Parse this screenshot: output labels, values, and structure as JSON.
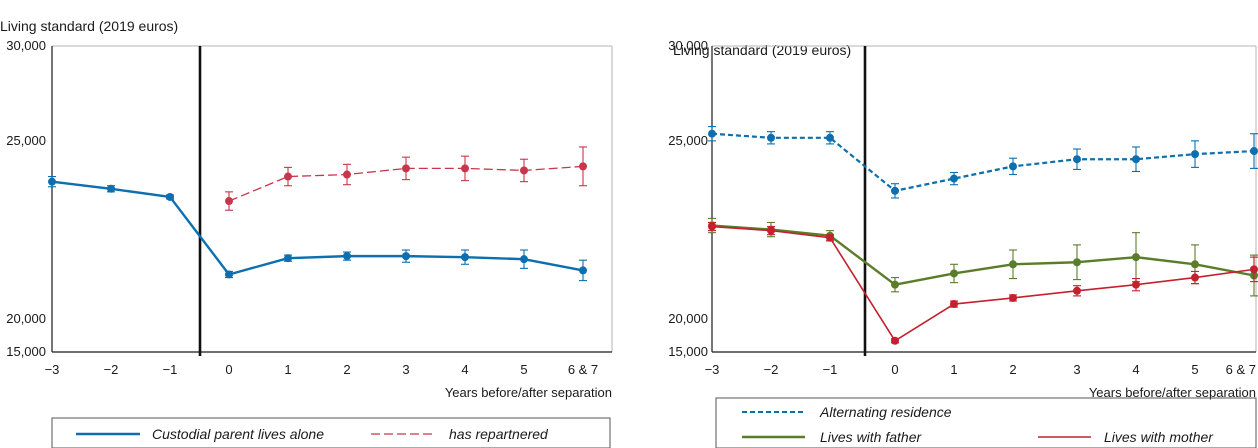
{
  "colors": {
    "blue": "#0b6fb0",
    "red": "#c8364b",
    "green": "#5a7d2a",
    "crimson": "#c4202e",
    "axis": "#1a1a1a",
    "frame": "#b4b4b4"
  },
  "chart_data": [
    {
      "type": "line",
      "ylabel": "Living standard (2019 euros)",
      "xlabel": "Years before/after separation",
      "x_ticks": [
        "−3",
        "−2",
        "−1",
        "0",
        "1",
        "2",
        "3",
        "4",
        "5",
        "6 & 7"
      ],
      "x_positions": [
        -3,
        -2,
        -1,
        0,
        1,
        2,
        3,
        4,
        5,
        6
      ],
      "y_ticks": [
        "15,000",
        "20,000",
        "25,000",
        "30,000"
      ],
      "ylim": [
        15000,
        30000
      ],
      "xlim": [
        -3,
        6
      ],
      "separation_line_x": -0.5,
      "series": [
        {
          "name": "Custodial parent lives alone",
          "style": "solid",
          "color": "#0b6fb0",
          "marker": "circle",
          "x": [
            -3,
            -2,
            -1,
            0,
            1,
            2,
            3,
            4,
            5,
            6
          ],
          "values": [
            23350,
            23000,
            22600,
            18800,
            19600,
            19700,
            19700,
            19650,
            19550,
            19000
          ],
          "err": [
            250,
            150,
            100,
            150,
            150,
            200,
            300,
            350,
            450,
            500
          ]
        },
        {
          "name": "has repartnered",
          "style": "dashed",
          "color": "#c8364b",
          "marker": "circle",
          "x": [
            0,
            1,
            2,
            3,
            4,
            5,
            6
          ],
          "values": [
            22400,
            23600,
            23700,
            24000,
            24000,
            23900,
            24100
          ],
          "err": [
            450,
            450,
            500,
            550,
            600,
            550,
            950
          ]
        }
      ]
    },
    {
      "type": "line",
      "ylabel": "Living standard (2019 euros)",
      "xlabel": "Years before/after separation",
      "x_ticks": [
        "−3",
        "−2",
        "−1",
        "0",
        "1",
        "2",
        "3",
        "4",
        "5",
        "6 & 7"
      ],
      "x_positions": [
        -3,
        -2,
        -1,
        0,
        1,
        2,
        3,
        4,
        5,
        6
      ],
      "y_ticks": [
        "15,000",
        "20,000",
        "25,000",
        "30,000"
      ],
      "ylim": [
        15000,
        30000
      ],
      "xlim": [
        -3,
        6
      ],
      "separation_line_x": -0.5,
      "series": [
        {
          "name": "Alternating residence",
          "style": "dashed",
          "color": "#0b6fb0",
          "marker": "circle",
          "x": [
            -3,
            -2,
            -1,
            0,
            1,
            2,
            3,
            4,
            5,
            6
          ],
          "values": [
            25700,
            25500,
            25500,
            22900,
            23500,
            24100,
            24450,
            24450,
            24700,
            24850
          ],
          "err": [
            350,
            300,
            300,
            350,
            300,
            400,
            500,
            600,
            650,
            850
          ]
        },
        {
          "name": "Lives with father",
          "style": "solid",
          "color": "#5a7d2a",
          "marker": "circle",
          "x": [
            -3,
            -2,
            -1,
            0,
            1,
            2,
            3,
            4,
            5,
            6
          ],
          "values": [
            21200,
            21000,
            20700,
            18300,
            18850,
            19300,
            19400,
            19650,
            19300,
            18750
          ],
          "err": [
            350,
            350,
            250,
            350,
            450,
            700,
            850,
            1200,
            950,
            1000
          ]
        },
        {
          "name": "Lives with mother",
          "style": "solid",
          "color": "#c4202e",
          "marker": "circle",
          "x": [
            -3,
            -2,
            -1,
            0,
            1,
            2,
            3,
            4,
            5,
            6
          ],
          "values": [
            21150,
            20950,
            20600,
            15550,
            17350,
            17650,
            18000,
            18300,
            18650,
            19050
          ],
          "err": [
            200,
            200,
            150,
            100,
            150,
            150,
            250,
            300,
            300,
            600
          ]
        }
      ]
    }
  ]
}
